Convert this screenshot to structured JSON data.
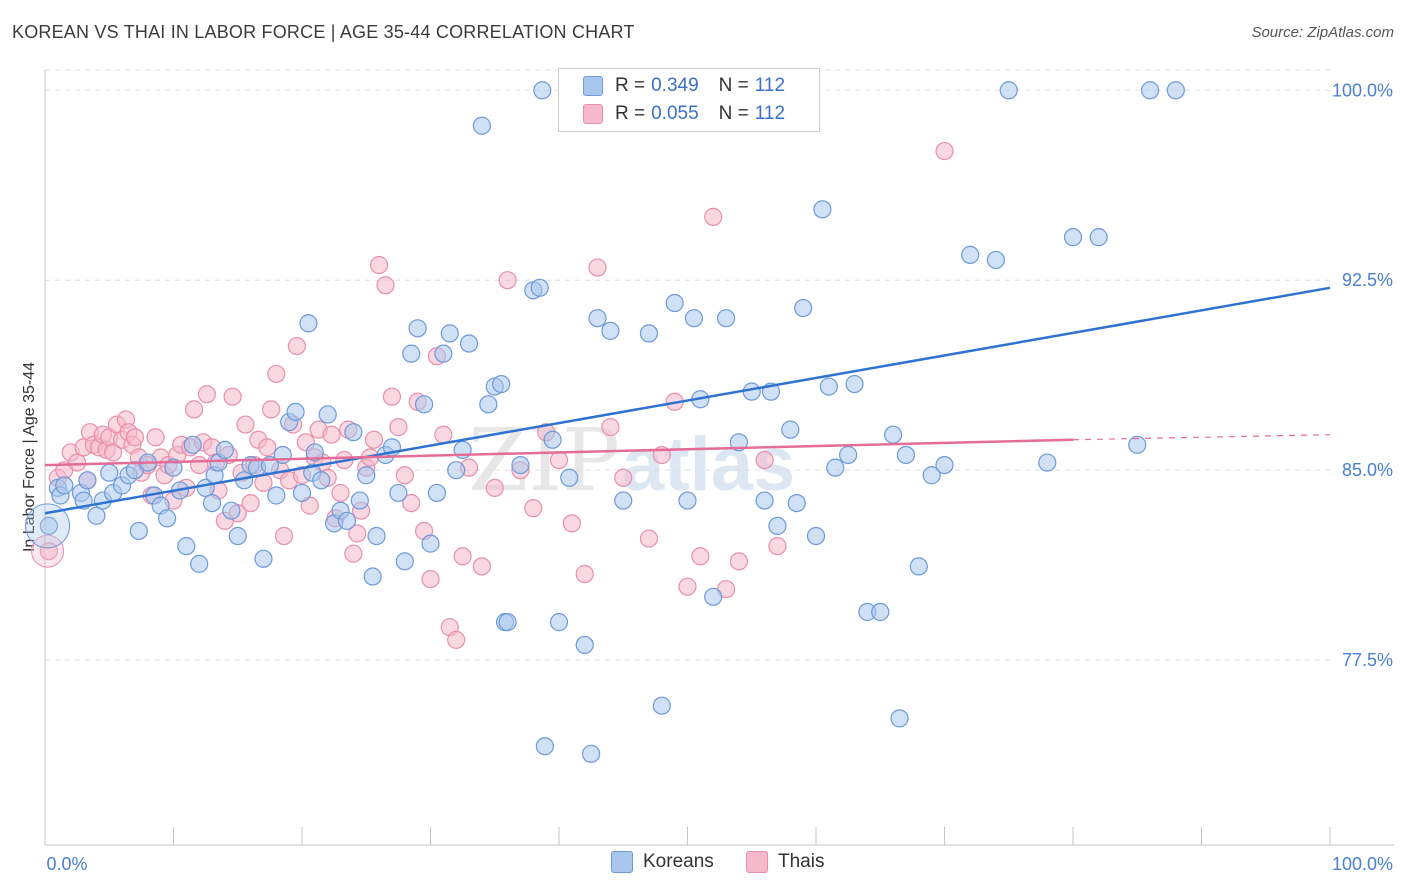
{
  "title": "KOREAN VS THAI IN LABOR FORCE | AGE 35-44 CORRELATION CHART",
  "source": "Source: ZipAtlas.com",
  "watermark": {
    "zip": "ZIP",
    "atlas": "atlas"
  },
  "legend": {
    "r_label": "R =",
    "n_label": "N =",
    "series": [
      {
        "r": "0.349",
        "n": "112"
      },
      {
        "r": "0.055",
        "n": "112"
      }
    ]
  },
  "bottom_legend": [
    "Koreans",
    "Thais"
  ],
  "colors": {
    "koreans_fill": "#a9c6ec",
    "koreans_stroke": "#6d9ad8",
    "koreans_line": "#2e73d1",
    "thais_fill": "#f6b8cb",
    "thais_stroke": "#e88fab",
    "thais_line": "#e36d97",
    "tick_color": "#4a80d0",
    "grid": "#dddddd"
  },
  "chart_data": {
    "type": "scatter",
    "title": "KOREAN VS THAI IN LABOR FORCE | AGE 35-44 CORRELATION CHART",
    "xlabel": "",
    "ylabel": "In Labor Force | Age 35-44",
    "xlim": [
      0,
      100
    ],
    "ylim": [
      70.2,
      100.8
    ],
    "x_tick_labels": [
      "0.0%",
      "100.0%"
    ],
    "y_ticks": [
      77.5,
      85.0,
      92.5,
      100.0
    ],
    "y_tick_labels": [
      "77.5%",
      "85.0%",
      "92.5%",
      "100.0%"
    ],
    "grid": true,
    "legend_position": "top-center",
    "series": [
      {
        "name": "Koreans",
        "r": 0.349,
        "n": 112,
        "trend": {
          "x": [
            0,
            100
          ],
          "y": [
            83.3,
            92.2
          ]
        },
        "points": [
          [
            0.3,
            82.8
          ],
          [
            1.0,
            84.3
          ],
          [
            1.2,
            84.0
          ],
          [
            1.5,
            84.4
          ],
          [
            2.8,
            84.1
          ],
          [
            3.0,
            83.8
          ],
          [
            3.3,
            84.6
          ],
          [
            4.0,
            83.2
          ],
          [
            4.5,
            83.8
          ],
          [
            5.0,
            84.9
          ],
          [
            5.3,
            84.1
          ],
          [
            6.0,
            84.4
          ],
          [
            6.5,
            84.8
          ],
          [
            7.0,
            85.0
          ],
          [
            7.3,
            82.6
          ],
          [
            8.0,
            85.3
          ],
          [
            8.5,
            84.0
          ],
          [
            9.0,
            83.6
          ],
          [
            9.5,
            83.1
          ],
          [
            10.0,
            85.1
          ],
          [
            10.5,
            84.2
          ],
          [
            11.0,
            82.0
          ],
          [
            11.5,
            86.0
          ],
          [
            12.0,
            81.3
          ],
          [
            12.5,
            84.3
          ],
          [
            13.0,
            83.7
          ],
          [
            13.2,
            84.8
          ],
          [
            13.5,
            85.3
          ],
          [
            14.0,
            85.8
          ],
          [
            14.5,
            83.4
          ],
          [
            15.0,
            82.4
          ],
          [
            15.5,
            84.6
          ],
          [
            16.0,
            85.2
          ],
          [
            16.5,
            85.1
          ],
          [
            17.0,
            81.5
          ],
          [
            17.5,
            85.2
          ],
          [
            18.0,
            84.0
          ],
          [
            18.5,
            85.6
          ],
          [
            19.0,
            86.9
          ],
          [
            19.5,
            87.3
          ],
          [
            20.0,
            84.1
          ],
          [
            20.5,
            90.8
          ],
          [
            20.8,
            84.9
          ],
          [
            21.0,
            85.7
          ],
          [
            21.5,
            84.6
          ],
          [
            22.0,
            87.2
          ],
          [
            22.5,
            82.9
          ],
          [
            23.0,
            83.4
          ],
          [
            23.5,
            83.0
          ],
          [
            24.0,
            86.5
          ],
          [
            24.5,
            83.8
          ],
          [
            25.0,
            84.8
          ],
          [
            25.5,
            80.8
          ],
          [
            25.8,
            82.4
          ],
          [
            26.5,
            85.6
          ],
          [
            27.0,
            85.9
          ],
          [
            27.5,
            84.1
          ],
          [
            28.0,
            81.4
          ],
          [
            28.5,
            89.6
          ],
          [
            29.0,
            90.6
          ],
          [
            29.5,
            87.6
          ],
          [
            30.0,
            82.1
          ],
          [
            30.5,
            84.1
          ],
          [
            31.0,
            89.6
          ],
          [
            31.5,
            90.4
          ],
          [
            32.0,
            85.0
          ],
          [
            32.5,
            85.8
          ],
          [
            33.0,
            90.0
          ],
          [
            34.0,
            98.6
          ],
          [
            34.5,
            87.6
          ],
          [
            35.0,
            88.3
          ],
          [
            35.5,
            88.4
          ],
          [
            35.8,
            79.0
          ],
          [
            36.0,
            79.0
          ],
          [
            37.0,
            85.2
          ],
          [
            38.0,
            92.1
          ],
          [
            38.5,
            92.2
          ],
          [
            38.7,
            100.0
          ],
          [
            38.9,
            74.1
          ],
          [
            39.5,
            86.2
          ],
          [
            40.0,
            79.0
          ],
          [
            40.8,
            84.7
          ],
          [
            42.0,
            78.1
          ],
          [
            42.5,
            73.8
          ],
          [
            43.0,
            91.0
          ],
          [
            44.0,
            90.5
          ],
          [
            45.0,
            83.8
          ],
          [
            47.0,
            90.4
          ],
          [
            48.0,
            75.7
          ],
          [
            49.0,
            91.6
          ],
          [
            50.0,
            83.8
          ],
          [
            50.5,
            91.0
          ],
          [
            51.0,
            87.8
          ],
          [
            52.0,
            80.0
          ],
          [
            53.0,
            91.0
          ],
          [
            54.0,
            86.1
          ],
          [
            55.0,
            88.1
          ],
          [
            56.0,
            83.8
          ],
          [
            56.5,
            88.1
          ],
          [
            57.0,
            82.8
          ],
          [
            58.0,
            86.6
          ],
          [
            58.5,
            83.7
          ],
          [
            59.0,
            91.4
          ],
          [
            60.0,
            82.4
          ],
          [
            60.5,
            95.3
          ],
          [
            61.0,
            88.3
          ],
          [
            61.5,
            85.1
          ],
          [
            62.5,
            85.6
          ],
          [
            63.0,
            88.4
          ],
          [
            64.0,
            79.4
          ],
          [
            65.0,
            79.4
          ],
          [
            66.0,
            86.4
          ],
          [
            66.5,
            75.2
          ],
          [
            67.0,
            85.6
          ],
          [
            68.0,
            81.2
          ],
          [
            69.0,
            84.8
          ],
          [
            70.0,
            85.2
          ],
          [
            72.0,
            93.5
          ],
          [
            74.0,
            93.3
          ],
          [
            75.0,
            100.0
          ],
          [
            78.0,
            85.3
          ],
          [
            80.0,
            94.2
          ],
          [
            82.0,
            94.2
          ],
          [
            85.0,
            86.0
          ],
          [
            86.0,
            100.0
          ],
          [
            88.0,
            100.0
          ]
        ]
      },
      {
        "name": "Thais",
        "r": 0.055,
        "n": 112,
        "trend": {
          "x": [
            0,
            80
          ],
          "y": [
            85.2,
            86.2
          ]
        },
        "trend_dashed": {
          "x": [
            80,
            100
          ],
          "y": [
            86.2,
            86.4
          ]
        },
        "points": [
          [
            0.3,
            81.8
          ],
          [
            1.0,
            84.7
          ],
          [
            1.5,
            85.0
          ],
          [
            2.0,
            85.7
          ],
          [
            2.5,
            85.3
          ],
          [
            3.0,
            85.9
          ],
          [
            3.3,
            84.6
          ],
          [
            3.5,
            86.5
          ],
          [
            3.8,
            86.0
          ],
          [
            4.2,
            85.9
          ],
          [
            4.5,
            86.4
          ],
          [
            4.8,
            85.8
          ],
          [
            5.0,
            86.3
          ],
          [
            5.3,
            85.7
          ],
          [
            5.6,
            86.8
          ],
          [
            6.0,
            86.2
          ],
          [
            6.3,
            87.0
          ],
          [
            6.5,
            86.5
          ],
          [
            6.8,
            86.0
          ],
          [
            7.0,
            86.3
          ],
          [
            7.3,
            85.5
          ],
          [
            7.5,
            84.9
          ],
          [
            8.0,
            85.2
          ],
          [
            8.3,
            84.0
          ],
          [
            8.6,
            86.3
          ],
          [
            9.0,
            85.5
          ],
          [
            9.3,
            84.8
          ],
          [
            9.6,
            85.2
          ],
          [
            10.0,
            83.8
          ],
          [
            10.3,
            85.6
          ],
          [
            10.6,
            86.0
          ],
          [
            11.0,
            84.3
          ],
          [
            11.3,
            85.9
          ],
          [
            11.6,
            87.4
          ],
          [
            12.0,
            85.2
          ],
          [
            12.3,
            86.1
          ],
          [
            12.6,
            88.0
          ],
          [
            13.0,
            85.9
          ],
          [
            13.3,
            85.3
          ],
          [
            13.5,
            84.2
          ],
          [
            14.0,
            83.0
          ],
          [
            14.3,
            85.6
          ],
          [
            14.6,
            87.9
          ],
          [
            15.0,
            83.3
          ],
          [
            15.3,
            84.9
          ],
          [
            15.6,
            86.8
          ],
          [
            16.0,
            83.7
          ],
          [
            16.3,
            85.2
          ],
          [
            16.6,
            86.2
          ],
          [
            17.0,
            84.5
          ],
          [
            17.3,
            85.9
          ],
          [
            17.6,
            87.4
          ],
          [
            18.0,
            88.8
          ],
          [
            18.3,
            85.0
          ],
          [
            18.6,
            82.4
          ],
          [
            19.0,
            84.6
          ],
          [
            19.3,
            86.8
          ],
          [
            19.6,
            89.9
          ],
          [
            20.0,
            84.8
          ],
          [
            20.3,
            86.1
          ],
          [
            20.6,
            83.6
          ],
          [
            21.0,
            85.5
          ],
          [
            21.3,
            86.6
          ],
          [
            21.6,
            85.3
          ],
          [
            22.0,
            84.7
          ],
          [
            22.3,
            86.4
          ],
          [
            22.6,
            83.1
          ],
          [
            23.0,
            84.1
          ],
          [
            23.3,
            85.4
          ],
          [
            23.6,
            86.6
          ],
          [
            24.0,
            81.7
          ],
          [
            24.3,
            82.5
          ],
          [
            24.6,
            83.4
          ],
          [
            25.0,
            85.1
          ],
          [
            25.3,
            85.5
          ],
          [
            25.6,
            86.2
          ],
          [
            26.0,
            93.1
          ],
          [
            26.5,
            92.3
          ],
          [
            27.0,
            87.9
          ],
          [
            27.5,
            86.7
          ],
          [
            28.0,
            84.8
          ],
          [
            28.5,
            83.7
          ],
          [
            29.0,
            87.7
          ],
          [
            29.5,
            82.6
          ],
          [
            30.0,
            80.7
          ],
          [
            30.5,
            89.5
          ],
          [
            31.0,
            86.4
          ],
          [
            31.5,
            78.8
          ],
          [
            32.0,
            78.3
          ],
          [
            32.5,
            81.6
          ],
          [
            33.0,
            85.1
          ],
          [
            34.0,
            81.2
          ],
          [
            35.0,
            84.3
          ],
          [
            36.0,
            92.5
          ],
          [
            37.0,
            85.0
          ],
          [
            38.0,
            83.5
          ],
          [
            39.0,
            86.5
          ],
          [
            40.0,
            85.4
          ],
          [
            41.0,
            82.9
          ],
          [
            42.0,
            80.9
          ],
          [
            43.0,
            93.0
          ],
          [
            44.0,
            86.7
          ],
          [
            45.0,
            84.7
          ],
          [
            47.0,
            82.3
          ],
          [
            48.0,
            85.6
          ],
          [
            49.0,
            87.7
          ],
          [
            50.0,
            80.4
          ],
          [
            51.0,
            81.6
          ],
          [
            52.0,
            95.0
          ],
          [
            53.0,
            80.3
          ],
          [
            54.0,
            81.4
          ],
          [
            56.0,
            85.4
          ],
          [
            57.0,
            82.0
          ],
          [
            70.0,
            97.6
          ]
        ]
      }
    ]
  }
}
